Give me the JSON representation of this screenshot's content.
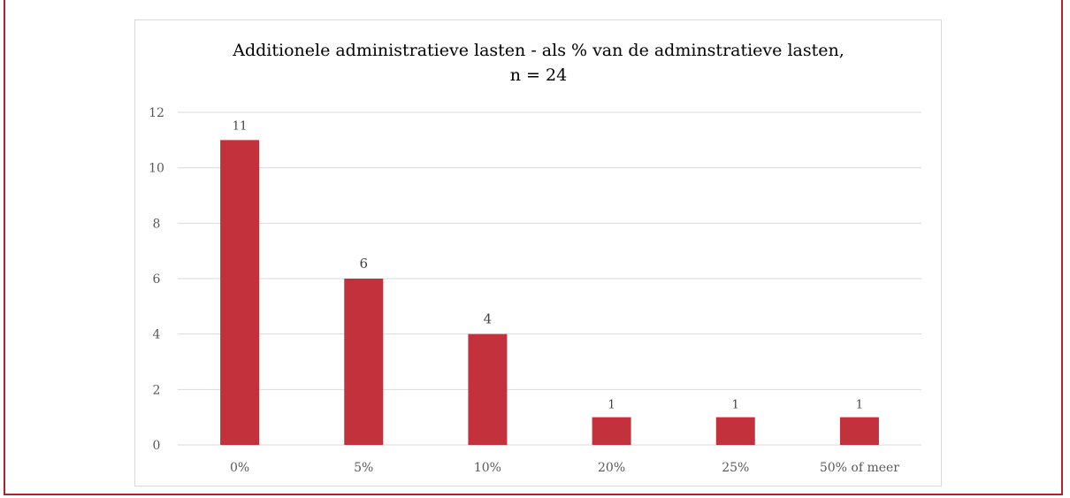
{
  "caption": "",
  "colors": {
    "bar": "#c3323c",
    "frame": "#b3212f",
    "grid": "#d9d9d9"
  },
  "chart_data": {
    "type": "bar",
    "title_line1": "Additionele administratieve lasten - als % van de adminstratieve lasten,",
    "title_line2": "n = 24",
    "categories": [
      "0%",
      "5%",
      "10%",
      "20%",
      "25%",
      "50% of meer"
    ],
    "values": [
      11,
      6,
      4,
      1,
      1,
      1
    ],
    "data_labels": [
      "11",
      "6",
      "4",
      "1",
      "1",
      "1"
    ],
    "y_ticks": [
      "0",
      "2",
      "4",
      "6",
      "8",
      "10",
      "12"
    ],
    "ylim": [
      0,
      12
    ],
    "xlabel": "",
    "ylabel": "",
    "grid": true,
    "legend": "none"
  }
}
